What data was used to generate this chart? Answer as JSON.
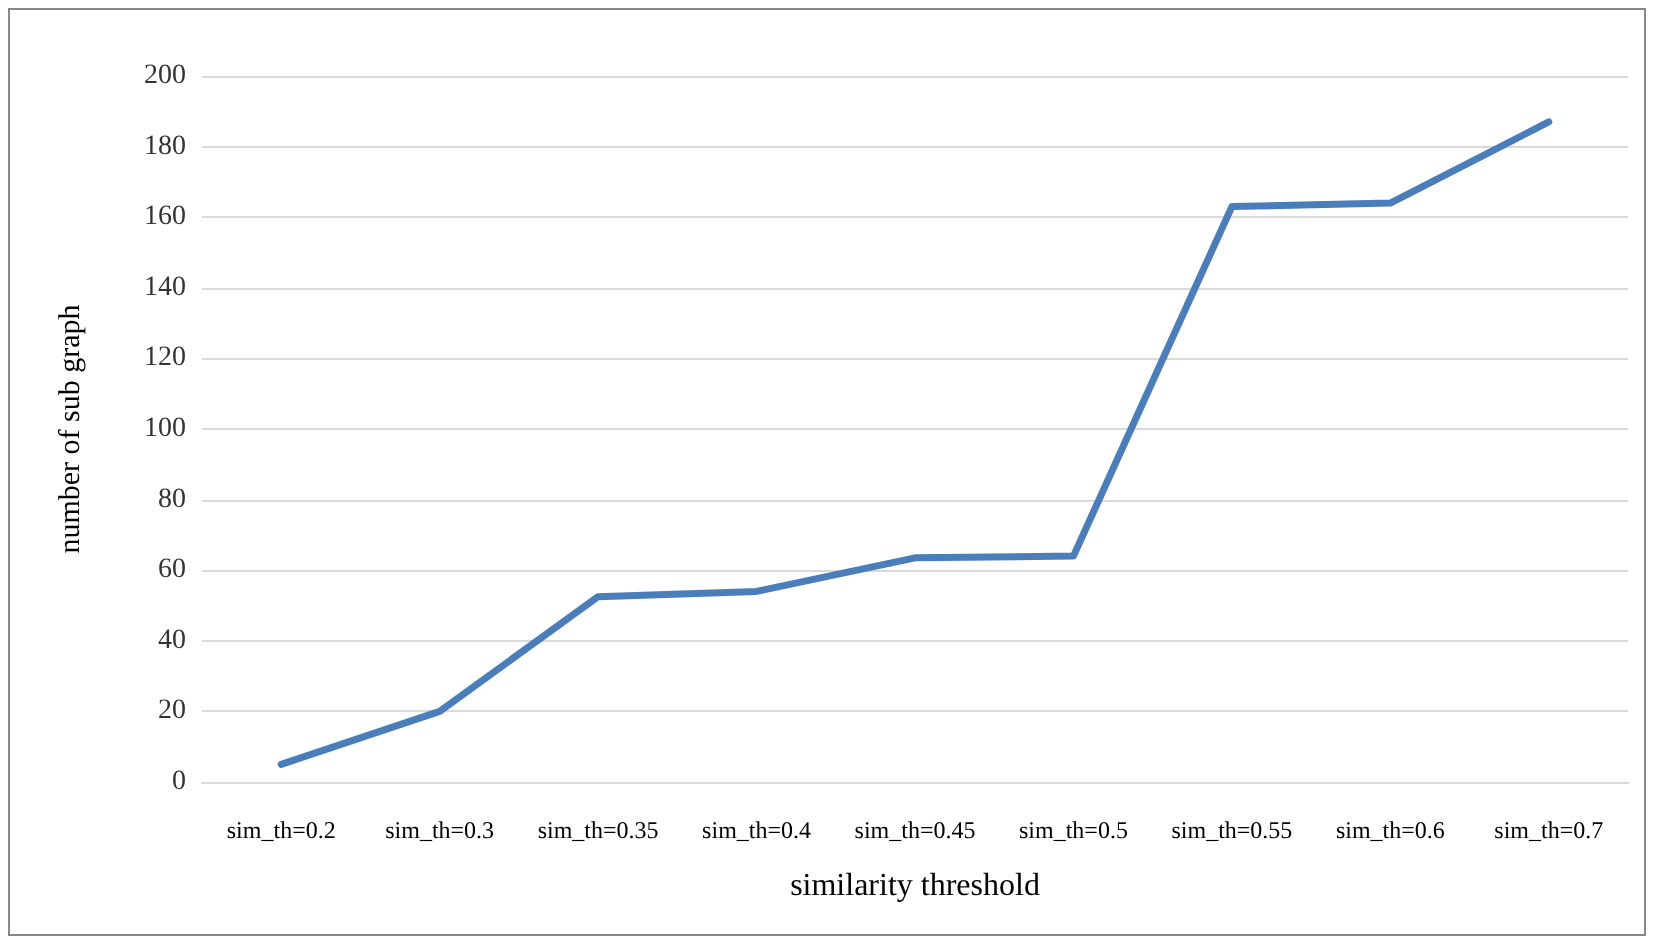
{
  "chart_data": {
    "type": "line",
    "xlabel": "similarity threshold",
    "ylabel": "number of sub graph",
    "categories": [
      "sim_th=0.2",
      "sim_th=0.3",
      "sim_th=0.35",
      "sim_th=0.4",
      "sim_th=0.45",
      "sim_th=0.5",
      "sim_th=0.55",
      "sim_th=0.6",
      "sim_th=0.7"
    ],
    "series": [
      {
        "color": "#4a7ebb",
        "values": [
          5,
          20,
          52.5,
          54,
          63.5,
          64,
          163,
          164,
          187
        ]
      }
    ],
    "ylim": [
      0,
      200
    ],
    "yticks": [
      0,
      20,
      40,
      60,
      80,
      100,
      120,
      140,
      160,
      180,
      200
    ],
    "grid": "y",
    "marker": "none",
    "line_style": "solid"
  }
}
